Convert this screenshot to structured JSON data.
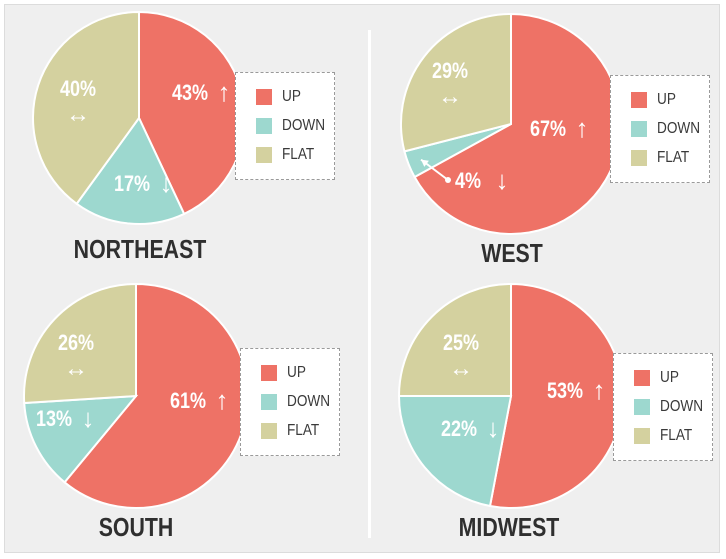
{
  "colors": {
    "up": "#ee7266",
    "down": "#9dd8cf",
    "flat": "#d4d19f",
    "text": "#ffffff",
    "dark": "#3a3a3a"
  },
  "legend": {
    "up": "UP",
    "down": "DOWN",
    "flat": "FLAT"
  },
  "arrows": {
    "up": "↑",
    "down": "↓",
    "flat": "↔"
  },
  "chart_data": [
    {
      "type": "pie",
      "title": "NORTHEAST",
      "categories": [
        "UP",
        "DOWN",
        "FLAT"
      ],
      "values": [
        43,
        17,
        40
      ],
      "labels": [
        "43%",
        "17%",
        "40%"
      ]
    },
    {
      "type": "pie",
      "title": "WEST",
      "categories": [
        "UP",
        "DOWN",
        "FLAT"
      ],
      "values": [
        67,
        4,
        29
      ],
      "labels": [
        "67%",
        "4%",
        "29%"
      ]
    },
    {
      "type": "pie",
      "title": "SOUTH",
      "categories": [
        "UP",
        "DOWN",
        "FLAT"
      ],
      "values": [
        61,
        13,
        26
      ],
      "labels": [
        "61%",
        "13%",
        "26%"
      ]
    },
    {
      "type": "pie",
      "title": "MIDWEST",
      "categories": [
        "UP",
        "DOWN",
        "FLAT"
      ],
      "values": [
        53,
        22,
        25
      ],
      "labels": [
        "53%",
        "22%",
        "25%"
      ]
    }
  ]
}
